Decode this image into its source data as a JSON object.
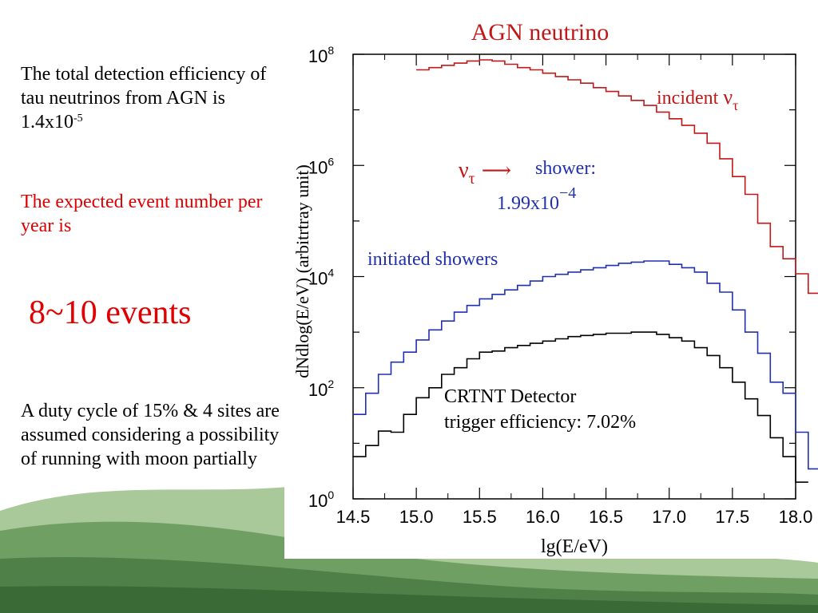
{
  "slide": {
    "para1_text": "The total detection efficiency of tau neutrinos from AGN is 1.4x10",
    "para1_exp": "-5",
    "para2_text": "The expected event number per year is",
    "big_text": "8~10 events",
    "para3_text": "A duty cycle of 15% & 4 sites are assumed considering a possibility of running with moon partially"
  },
  "colors": {
    "red": "#c01818",
    "blue": "#2030b0",
    "black": "#000000",
    "title_red": "#c01818"
  },
  "chart_data": {
    "type": "line",
    "title": "AGN neutrino",
    "xlabel": "lg(E/eV)",
    "ylabel": "dNdlog(E/eV)   (arbitrtray unit)",
    "xlim": [
      14.5,
      18.0
    ],
    "ylog": true,
    "ylim_exp": [
      0,
      8
    ],
    "x_ticks": [
      "14.5",
      "15.0",
      "15.5",
      "16.0",
      "16.5",
      "17.0",
      "17.5",
      "18.0"
    ],
    "y_tick_base": "10",
    "y_tick_exps": [
      "0",
      "2",
      "4",
      "6",
      "8"
    ],
    "annotations": {
      "incident_label": "incident ",
      "nu_tau": "ν",
      "tau_sub": "τ",
      "shower_label": "shower:",
      "arrow": "⟶",
      "ratio_mantissa": "1.99x10",
      "ratio_exp": "−4",
      "initiated_label": "initiated showers",
      "detector_line1": "CRTNT Detector",
      "detector_line2": "trigger efficiency: 7.02%"
    },
    "bin_width": 0.1,
    "series": [
      {
        "color": "red",
        "x_start": 15.0,
        "values": [
          7.72,
          7.76,
          7.8,
          7.84,
          7.88,
          7.9,
          7.88,
          7.82,
          7.76,
          7.72,
          7.66,
          7.6,
          7.54,
          7.48,
          7.4,
          7.33,
          7.25,
          7.17,
          7.08,
          6.96,
          6.84,
          6.72,
          6.58,
          6.4,
          6.12,
          5.8,
          5.48,
          4.96,
          4.54,
          4.32,
          4.05,
          3.7,
          3.7
        ]
      },
      {
        "color": "blue",
        "x_start": 14.5,
        "values": [
          1.52,
          1.9,
          2.24,
          2.46,
          2.64,
          2.86,
          3.04,
          3.2,
          3.36,
          3.48,
          3.6,
          3.68,
          3.76,
          3.84,
          3.92,
          4.0,
          4.04,
          4.08,
          4.12,
          4.16,
          4.2,
          4.24,
          4.26,
          4.28,
          4.28,
          4.22,
          4.16,
          4.08,
          3.88,
          3.72,
          3.4,
          3.0,
          2.62,
          2.1,
          1.9,
          1.2,
          0.54,
          0.54
        ]
      },
      {
        "color": "black",
        "x_start": 14.5,
        "values": [
          0.76,
          0.96,
          1.22,
          1.2,
          1.52,
          1.82,
          2.0,
          2.24,
          2.36,
          2.52,
          2.64,
          2.66,
          2.72,
          2.76,
          2.8,
          2.84,
          2.88,
          2.92,
          2.94,
          2.96,
          2.98,
          2.98,
          3.0,
          3.0,
          2.96,
          2.9,
          2.84,
          2.72,
          2.58,
          2.36,
          2.1,
          1.8,
          1.5,
          1.1,
          0.76,
          0.3
        ]
      }
    ]
  }
}
